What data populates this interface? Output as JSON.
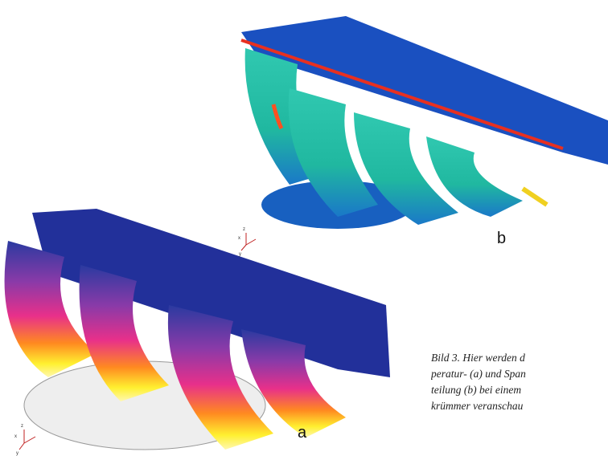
{
  "figure": {
    "label_a": "a",
    "label_b": "b",
    "triad_a": {
      "x": "x",
      "y": "y",
      "z": "z"
    },
    "triad_b": {
      "x": "x",
      "y": "y",
      "z": "z"
    },
    "caption": [
      "Bild 3. Hier werden d",
      "peratur- (a) und Span",
      "teilung (b) bei einem",
      "krümmer veranschau"
    ]
  }
}
